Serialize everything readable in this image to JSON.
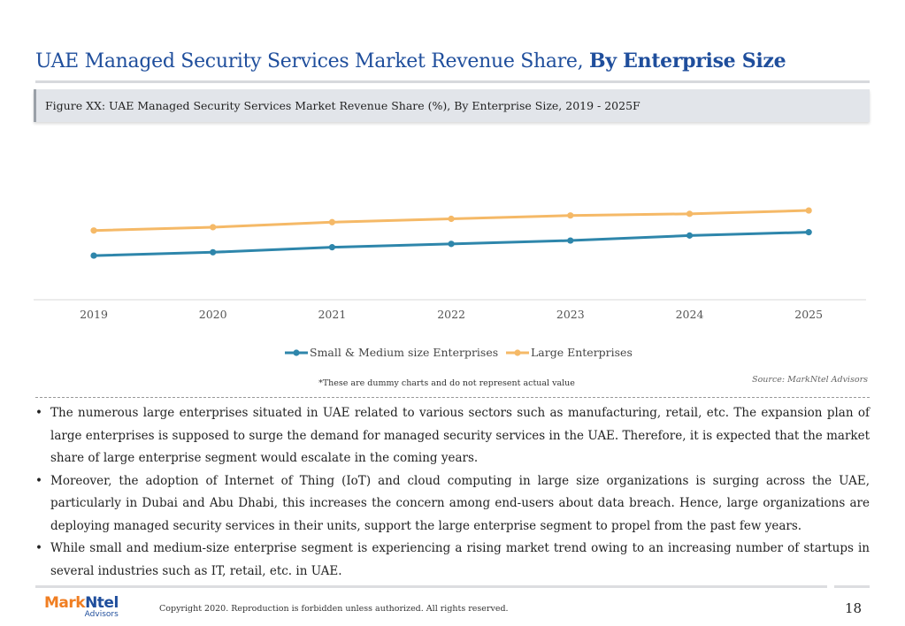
{
  "header": {
    "title_regular": "UAE Managed Security Services Market Revenue Share, ",
    "title_bold": "By Enterprise Size"
  },
  "figure": {
    "caption": "Figure XX: UAE Managed Security Services Market Revenue Share (%), By Enterprise Size, 2019 - 2025F"
  },
  "chart_data": {
    "type": "line",
    "title": "",
    "xlabel": "",
    "ylabel": "",
    "x": [
      "2019",
      "2020",
      "2021",
      "2022",
      "2023",
      "2024",
      "2025"
    ],
    "ylim": [
      0,
      100
    ],
    "y_axis_visible": false,
    "grid": false,
    "legend_position": "bottom",
    "series": [
      {
        "name": "Small & Medium size Enterprises",
        "color": "#2e86ab",
        "values": [
          37,
          39,
          42,
          44,
          46,
          49,
          51
        ]
      },
      {
        "name": "Large Enterprises",
        "color": "#f5b967",
        "values": [
          52,
          54,
          57,
          59,
          61,
          62,
          64
        ]
      }
    ]
  },
  "notes": {
    "dummy": "*These are dummy charts and do not represent actual value",
    "source": "Source: MarkNtel Advisors"
  },
  "bullets": [
    "The numerous large enterprises situated in UAE related to various sectors such as manufacturing, retail, etc. The expansion plan of large enterprises is supposed to surge the demand for managed security services in the UAE. Therefore, it is expected that the market share of large enterprise segment would escalate in the coming years.",
    "Moreover, the adoption of Internet of Thing (IoT) and cloud computing in large size organizations is surging across the UAE, particularly in Dubai and Abu Dhabi, this increases the concern among end-users about data breach. Hence, large organizations are deploying managed security services in their units, support the large enterprise segment to propel from the past few years.",
    "While small and medium-size enterprise segment is experiencing a rising market trend owing to an increasing number of startups in several industries such as IT, retail, etc. in UAE."
  ],
  "footer": {
    "logo_mark": "Mark",
    "logo_ntel": "Ntel",
    "logo_sub": "Advisors",
    "copyright": "Copyright 2020. Reproduction is forbidden unless authorized. All rights reserved.",
    "page_number": "18"
  }
}
